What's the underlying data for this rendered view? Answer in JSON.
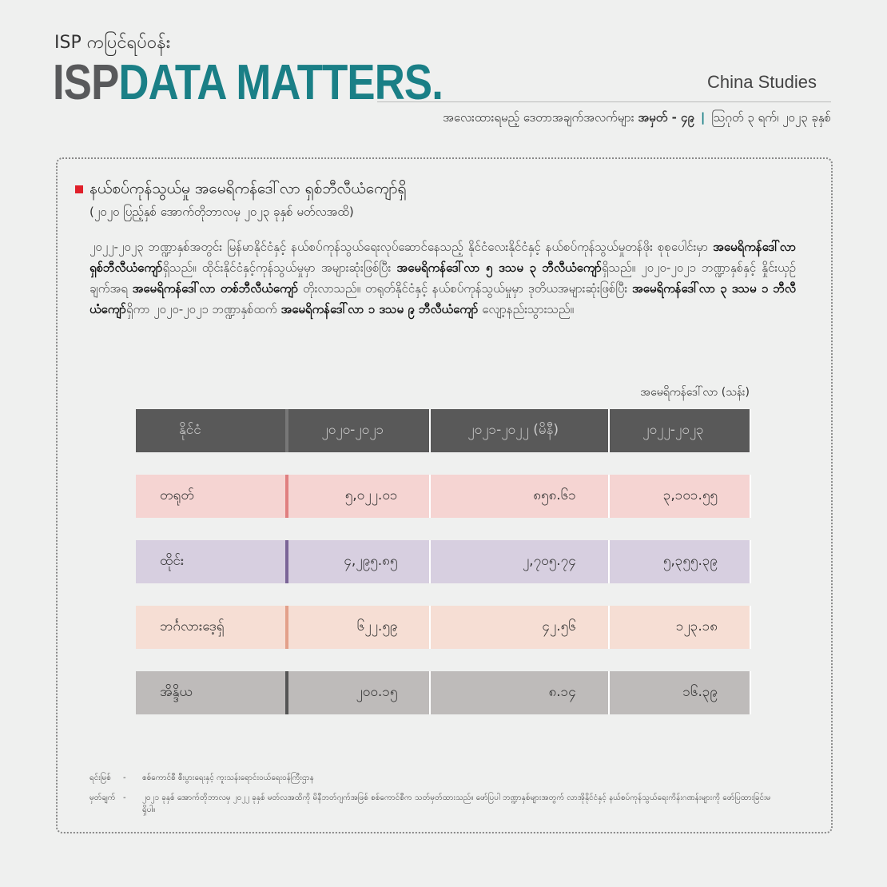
{
  "header": {
    "kicker": "ISP ကပြင်ရပ်ဝန်း",
    "brand_a": "ISP",
    "brand_b": "DATA MATTERS",
    "brand_dot": ".",
    "series": "China Studies",
    "issue": "အလေးထားရမည့် ဒေတာအချက်အလက်များ",
    "issue_no": "အမှတ် - ၄၉",
    "separator": "|",
    "date": "ဩဂုတ် ၃ ရက်၊ ၂၀၂၃ ခုနှစ်"
  },
  "section": {
    "title": "နယ်စပ်ကုန်သွယ်မှု အမေရိကန်ဒေါ်လာ ရှစ်ဘီလီယံကျော်ရှိ",
    "subtitle": "(၂၀၂၀ ပြည့်နှစ် အောက်တိုဘာလမှ ၂၀၂၃ ခုနှစ် မတ်လအထိ)",
    "paragraph": [
      {
        "text": "၂၀၂၂-၂၀၂၃ ဘဏ္ဍာနှစ်အတွင်း မြန်မာနိုင်ငံနှင့် နယ်စပ်ကုန်သွယ်ရေးလုပ်ဆောင်နေသည့် နိုင်ငံလေးနိုင်ငံနှင့် နယ်စပ်ကုန်သွယ်မှုတန်ဖိုး စုစုပေါင်းမှာ ",
        "bold": false
      },
      {
        "text": "အမေရိကန်ဒေါ်လာ ရှစ်ဘီလီယံကျော်",
        "bold": true
      },
      {
        "text": "ရှိသည်။ ထိုင်းနိုင်ငံနှင့်ကုန်သွယ်မှုမှာ အများဆုံးဖြစ်ပြီး ",
        "bold": false
      },
      {
        "text": "အမေရိကန်ဒေါ်လာ ၅ ဒသမ ၃ ဘီလီယံကျော်",
        "bold": true
      },
      {
        "text": "ရှိသည်။ ၂၀၂၀-၂၀၂၁ ဘဏ္ဍာနှစ်နှင့် နှိုင်းယှဉ်ချက်အရ ",
        "bold": false
      },
      {
        "text": "အမေရိကန်ဒေါ်လာ တစ်ဘီလီယံကျော်",
        "bold": true
      },
      {
        "text": " တိုးလာသည်။ တရုတ်နိုင်ငံနှင့် နယ်စပ်ကုန်သွယ်မှုမှာ ဒုတိယအများဆုံးဖြစ်ပြီး ",
        "bold": false
      },
      {
        "text": "အမေရိကန်ဒေါ်လာ ၃ ဒသမ ၁ ဘီလီယံကျော်",
        "bold": true
      },
      {
        "text": "ရှိကာ ၂၀၂၀-၂၀၂၁ ဘဏ္ဍာနှစ်ထက် ",
        "bold": false
      },
      {
        "text": "အမေရိကန်ဒေါ်လာ ၁ ဒသမ ၉ ဘီလီယံကျော်",
        "bold": true
      },
      {
        "text": " လျော့နည်းသွားသည်။",
        "bold": false
      }
    ]
  },
  "table": {
    "unit": "အမေရိကန်ဒေါ်လာ (သန်း)",
    "columns": [
      "နိုင်ငံ",
      "၂၀၂၀-၂၀၂၁",
      "၂၀၂၁-၂၀၂၂ (မိနီ)",
      "၂၀၂၂-၂၀၂၃"
    ],
    "rows": [
      {
        "cells": [
          "တရုတ်",
          "၅,၀၂၂.၀၁",
          "၈၅၈.၆၁",
          "၃,၁၀၁.၅၅"
        ],
        "color": "#f5d4d2",
        "accent": "#e07f80"
      },
      {
        "cells": [
          "ထိုင်း",
          "၄,၂၉၅.၈၅",
          "၂,၇၀၅.၇၄",
          "၅,၃၅၅.၃၉"
        ],
        "color": "#d7cfe0",
        "accent": "#7b6597"
      },
      {
        "cells": [
          "ဘင်္ဂလားဒေ့ရှ်",
          "၆၂၂.၅၉",
          "၄၂.၅၆",
          "၁၂၃.၁၈"
        ],
        "color": "#f6ded4",
        "accent": "#e3a08a"
      },
      {
        "cells": [
          "အိန္ဒိယ",
          "၂၀၀.၁၅",
          "၈.၁၄",
          "၁၆.၃၉"
        ],
        "color": "#bebbba",
        "accent": "#555555"
      }
    ]
  },
  "notes": [
    {
      "label": "ရင်းမြစ်",
      "dash": "-",
      "text": "စစ်ကောင်စီ စီးပွားရေးနှင့် ကူးသန်းရောင်းဝယ်ရေးဝန်ကြီးဌာန"
    },
    {
      "label": "မှတ်ချက်",
      "dash": "-",
      "text": "၂၀၂၁ ခုနှစ် အောက်တိုဘာလမှ ၂၀၂၂ ခုနှစ် မတ်လအထိကို မိနီဘတ်ဂျက်အဖြစ် စစ်ကောင်စီက သတ်မှတ်ထားသည်။ ဖော်ပြပါ ဘဏ္ဍာနှစ်များအတွက် လာအိုနိုင်ငံနှင့် နယ်စပ်ကုန်သွယ်ရေးကိန်းဂဏန်းများကို ဖော်ပြထားခြင်းမရှိပါ။"
    }
  ]
}
